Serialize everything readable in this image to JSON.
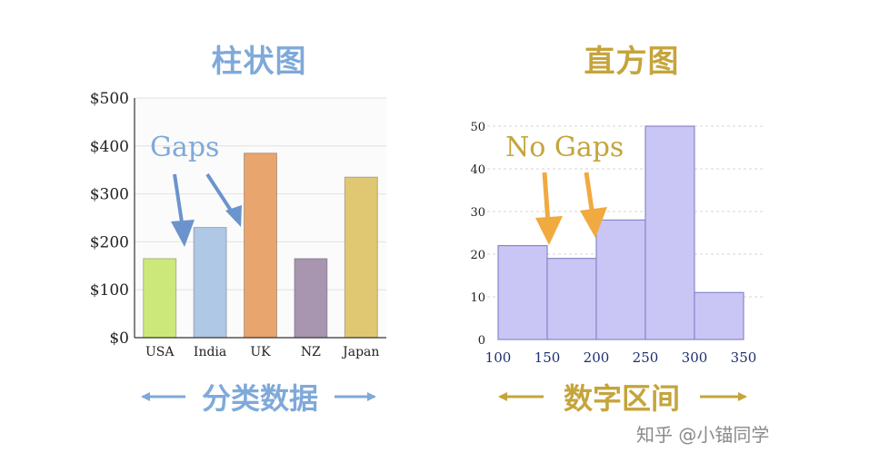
{
  "colors": {
    "bar_title": "#7fa9d9",
    "hist_title": "#c5a43c",
    "hist_fill": "#c9c6f5",
    "hist_stroke": "#8a86c9",
    "gap_arrow_blue": "#6b94cc",
    "gap_arrow_orange": "#f0aa40"
  },
  "chart_data": [
    {
      "type": "bar",
      "title": "柱状图",
      "categories": [
        "USA",
        "India",
        "UK",
        "NZ",
        "Japan"
      ],
      "values": [
        165,
        230,
        385,
        165,
        335
      ],
      "colors": [
        "#cde87a",
        "#aec8e6",
        "#e8a56e",
        "#a896b0",
        "#e0c873"
      ],
      "ylim": [
        0,
        500
      ],
      "yticks": [
        "$0",
        "$100",
        "$200",
        "$300",
        "$400",
        "$500"
      ],
      "ytick_values": [
        0,
        100,
        200,
        300,
        400,
        500
      ],
      "annotation": "Gaps",
      "footer": "分类数据"
    },
    {
      "type": "bar",
      "title": "直方图",
      "bins": [
        [
          100,
          150
        ],
        [
          150,
          200
        ],
        [
          200,
          250
        ],
        [
          250,
          300
        ],
        [
          300,
          350
        ]
      ],
      "values": [
        22,
        19,
        28,
        50,
        11
      ],
      "xticks": [
        "100",
        "150",
        "200",
        "250",
        "300",
        "350"
      ],
      "xtick_values": [
        100,
        150,
        200,
        250,
        300,
        350
      ],
      "yticks": [
        "0",
        "10",
        "20",
        "30",
        "40",
        "50"
      ],
      "ytick_values": [
        0,
        10,
        20,
        30,
        40,
        50
      ],
      "ylim": [
        0,
        50
      ],
      "annotation": "No Gaps",
      "footer": "数字区间"
    }
  ],
  "watermark": "知乎 @小锚同学"
}
